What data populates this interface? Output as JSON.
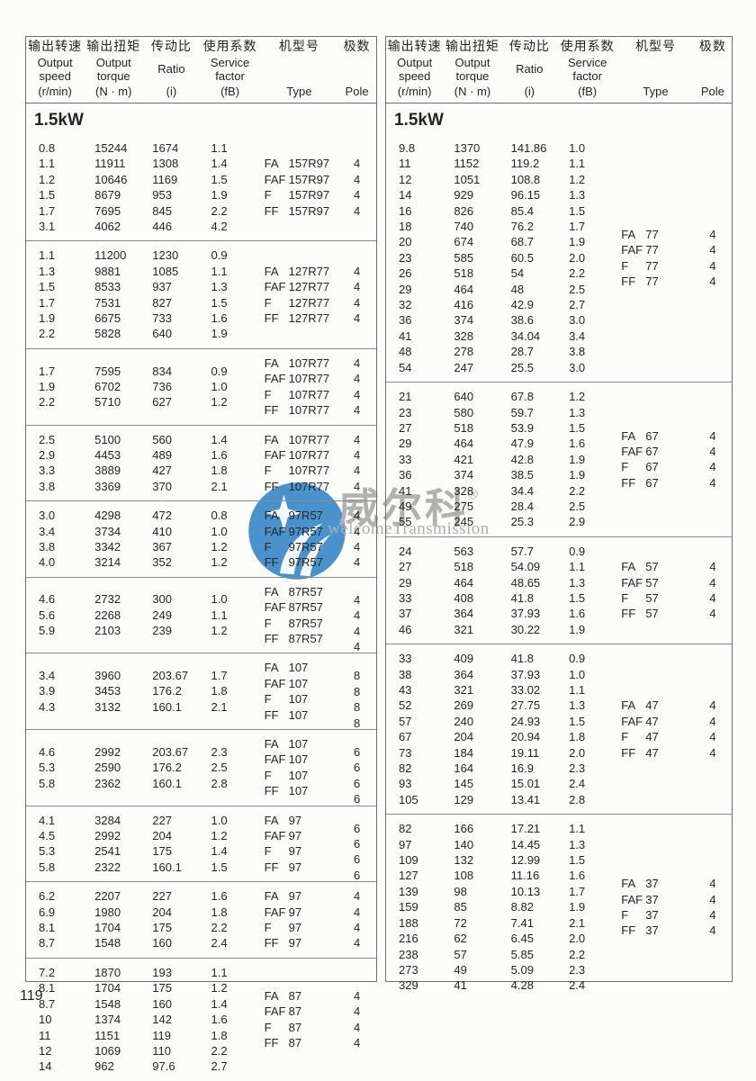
{
  "page": {
    "number": "119"
  },
  "header": {
    "columns": [
      {
        "key": "speed",
        "zh": "输出转速",
        "en": "Output speed",
        "unit": "(r/min)"
      },
      {
        "key": "torque",
        "zh": "输出扭矩",
        "en": "Output torque",
        "unit": "(N · m)"
      },
      {
        "key": "ratio",
        "zh": "传动比",
        "en": "Ratio",
        "unit": "(i)"
      },
      {
        "key": "factor",
        "zh": "使用系数",
        "en": "Service factor",
        "unit": "(fB)"
      },
      {
        "key": "type",
        "zh": "机型号",
        "en": "Type",
        "unit": ""
      },
      {
        "key": "pole",
        "zh": "极数",
        "en": "Pole",
        "unit": ""
      }
    ]
  },
  "watermark": {
    "brand_zh": "威尔科",
    "reg_mark": "®",
    "brand_en": "welcomeTransmission",
    "logo_color": "#2b80c4",
    "text_color": "#a4a4a4",
    "logo_name": "wheelco-bird-circle-logo"
  },
  "left_table": {
    "section": "1.5kW",
    "groups": [
      {
        "rows": [
          [
            "0.8",
            "15244",
            "1674",
            "1.1"
          ],
          [
            "1.1",
            "11911",
            "1308",
            "1.4"
          ],
          [
            "1.2",
            "10646",
            "1169",
            "1.5"
          ],
          [
            "1.5",
            "8679",
            "953",
            "1.9"
          ],
          [
            "1.7",
            "7695",
            "845",
            "2.2"
          ],
          [
            "3.1",
            "4062",
            "446",
            "4.2"
          ]
        ],
        "types": [
          {
            "p": "FA",
            "m": "157R97"
          },
          {
            "p": "FAF",
            "m": "157R97"
          },
          {
            "p": "F",
            "m": "157R97"
          },
          {
            "p": "FF",
            "m": "157R97"
          }
        ],
        "poles": [
          "4",
          "4",
          "4",
          "4"
        ],
        "pole_shift": false
      },
      {
        "rows": [
          [
            "1.1",
            "11200",
            "1230",
            "0.9"
          ],
          [
            "1.3",
            "9881",
            "1085",
            "1.1"
          ],
          [
            "1.5",
            "8533",
            "937",
            "1.3"
          ],
          [
            "1.7",
            "7531",
            "827",
            "1.5"
          ],
          [
            "1.9",
            "6675",
            "733",
            "1.6"
          ],
          [
            "2.2",
            "5828",
            "640",
            "1.9"
          ]
        ],
        "types": [
          {
            "p": "FA",
            "m": "127R77"
          },
          {
            "p": "FAF",
            "m": "127R77"
          },
          {
            "p": "F",
            "m": "127R77"
          },
          {
            "p": "FF",
            "m": "127R77"
          }
        ],
        "poles": [
          "4",
          "4",
          "4",
          "4"
        ],
        "pole_shift": false
      },
      {
        "rows": [
          [
            "1.7",
            "7595",
            "834",
            "0.9"
          ],
          [
            "1.9",
            "6702",
            "736",
            "1.0"
          ],
          [
            "2.2",
            "5710",
            "627",
            "1.2"
          ]
        ],
        "types": [
          {
            "p": "FA",
            "m": "107R77"
          },
          {
            "p": "FAF",
            "m": "107R77"
          },
          {
            "p": "F",
            "m": "107R77"
          },
          {
            "p": "FF",
            "m": "107R77"
          }
        ],
        "poles": [
          "4",
          "4",
          "4",
          "4"
        ],
        "pole_shift": false
      },
      {
        "rows": [
          [
            "2.5",
            "5100",
            "560",
            "1.4"
          ],
          [
            "2.9",
            "4453",
            "489",
            "1.6"
          ],
          [
            "3.3",
            "3889",
            "427",
            "1.8"
          ],
          [
            "3.8",
            "3369",
            "370",
            "2.1"
          ]
        ],
        "types": [
          {
            "p": "FA",
            "m": "107R77"
          },
          {
            "p": "FAF",
            "m": "107R77"
          },
          {
            "p": "F",
            "m": "107R77"
          },
          {
            "p": "FF",
            "m": "107R77"
          }
        ],
        "poles": [
          "4",
          "4",
          "4",
          "4"
        ],
        "pole_shift": false
      },
      {
        "rows": [
          [
            "3.0",
            "4298",
            "472",
            "0.8"
          ],
          [
            "3.4",
            "3734",
            "410",
            "1.0"
          ],
          [
            "3.8",
            "3342",
            "367",
            "1.2"
          ],
          [
            "4.0",
            "3214",
            "352",
            "1.2"
          ]
        ],
        "types": [
          {
            "p": "FA",
            "m": "97R57"
          },
          {
            "p": "FAF",
            "m": "97R57"
          },
          {
            "p": "F",
            "m": "97R57"
          },
          {
            "p": "FF",
            "m": "97R57"
          }
        ],
        "poles": [
          "4",
          "4",
          "4",
          "4"
        ],
        "pole_shift": false
      },
      {
        "rows": [
          [
            "4.6",
            "2732",
            "300",
            "1.0"
          ],
          [
            "5.6",
            "2268",
            "249",
            "1.1"
          ],
          [
            "5.9",
            "2103",
            "239",
            "1.2"
          ]
        ],
        "types": [
          {
            "p": "FA",
            "m": "87R57"
          },
          {
            "p": "FAF",
            "m": "87R57"
          },
          {
            "p": "F",
            "m": "87R57"
          },
          {
            "p": "FF",
            "m": "87R57"
          }
        ],
        "poles": [
          "4",
          "4",
          "4",
          "4"
        ],
        "pole_shift": true
      },
      {
        "rows": [
          [
            "3.4",
            "3960",
            "203.67",
            "1.7"
          ],
          [
            "3.9",
            "3453",
            "176.2",
            "1.8"
          ],
          [
            "4.3",
            "3132",
            "160.1",
            "2.1"
          ]
        ],
        "types": [
          {
            "p": "FA",
            "m": "107"
          },
          {
            "p": "FAF",
            "m": "107"
          },
          {
            "p": "F",
            "m": "107"
          },
          {
            "p": "FF",
            "m": "107"
          }
        ],
        "poles": [
          "8",
          "8",
          "8",
          "8"
        ],
        "pole_shift": true
      },
      {
        "rows": [
          [
            "4.6",
            "2992",
            "203.67",
            "2.3"
          ],
          [
            "5.3",
            "2590",
            "176.2",
            "2.5"
          ],
          [
            "5.8",
            "2362",
            "160.1",
            "2.8"
          ]
        ],
        "types": [
          {
            "p": "FA",
            "m": "107"
          },
          {
            "p": "FAF",
            "m": "107"
          },
          {
            "p": "F",
            "m": "107"
          },
          {
            "p": "FF",
            "m": "107"
          }
        ],
        "poles": [
          "6",
          "6",
          "6",
          "6"
        ],
        "pole_shift": true
      },
      {
        "rows": [
          [
            "4.1",
            "3284",
            "227",
            "1.0"
          ],
          [
            "4.5",
            "2992",
            "204",
            "1.2"
          ],
          [
            "5.3",
            "2541",
            "175",
            "1.4"
          ],
          [
            "5.8",
            "2322",
            "160.1",
            "1.5"
          ]
        ],
        "types": [
          {
            "p": "FA",
            "m": "97"
          },
          {
            "p": "FAF",
            "m": "97"
          },
          {
            "p": "F",
            "m": "97"
          },
          {
            "p": "FF",
            "m": "97"
          }
        ],
        "poles": [
          "6",
          "6",
          "6",
          "6"
        ],
        "pole_shift": true
      },
      {
        "rows": [
          [
            "6.2",
            "2207",
            "227",
            "1.6"
          ],
          [
            "6.9",
            "1980",
            "204",
            "1.8"
          ],
          [
            "8.1",
            "1704",
            "175",
            "2.2"
          ],
          [
            "8.7",
            "1548",
            "160",
            "2.4"
          ]
        ],
        "types": [
          {
            "p": "FA",
            "m": "97"
          },
          {
            "p": "FAF",
            "m": "97"
          },
          {
            "p": "F",
            "m": "97"
          },
          {
            "p": "FF",
            "m": "97"
          }
        ],
        "poles": [
          "4",
          "4",
          "4",
          "4"
        ],
        "pole_shift": false
      },
      {
        "rows": [
          [
            "7.2",
            "1870",
            "193",
            "1.1"
          ],
          [
            "8.1",
            "1704",
            "175",
            "1.2"
          ],
          [
            "8.7",
            "1548",
            "160",
            "1.4"
          ],
          [
            "10",
            "1374",
            "142",
            "1.6"
          ],
          [
            "11",
            "1151",
            "119",
            "1.8"
          ],
          [
            "12",
            "1069",
            "110",
            "2.2"
          ],
          [
            "14",
            "962",
            "97.6",
            "2.7"
          ]
        ],
        "types": [
          {
            "p": "FA",
            "m": "87"
          },
          {
            "p": "FAF",
            "m": "87"
          },
          {
            "p": "F",
            "m": "87"
          },
          {
            "p": "FF",
            "m": "87"
          }
        ],
        "poles": [
          "4",
          "4",
          "4",
          "4"
        ],
        "pole_shift": false
      }
    ]
  },
  "right_table": {
    "section": "1.5kW",
    "groups": [
      {
        "rows": [
          [
            "9.8",
            "1370",
            "141.86",
            "1.0"
          ],
          [
            "11",
            "1152",
            "119.2",
            "1.1"
          ],
          [
            "12",
            "1051",
            "108.8",
            "1.2"
          ],
          [
            "14",
            "929",
            "96.15",
            "1.3"
          ],
          [
            "16",
            "826",
            "85.4",
            "1.5"
          ],
          [
            "18",
            "740",
            "76.2",
            "1.7"
          ],
          [
            "20",
            "674",
            "68.7",
            "1.9"
          ],
          [
            "23",
            "585",
            "60.5",
            "2.0"
          ],
          [
            "26",
            "518",
            "54",
            "2.2"
          ],
          [
            "29",
            "464",
            "48",
            "2.5"
          ],
          [
            "32",
            "416",
            "42.9",
            "2.7"
          ],
          [
            "36",
            "374",
            "38.6",
            "3.0"
          ],
          [
            "41",
            "328",
            "34.04",
            "3.4"
          ],
          [
            "48",
            "278",
            "28.7",
            "3.8"
          ],
          [
            "54",
            "247",
            "25.5",
            "3.0"
          ]
        ],
        "types": [
          {
            "p": "FA",
            "m": "77"
          },
          {
            "p": "FAF",
            "m": "77"
          },
          {
            "p": "F",
            "m": "77"
          },
          {
            "p": "FF",
            "m": "77"
          }
        ],
        "poles": [
          "4",
          "4",
          "4",
          "4"
        ],
        "pole_shift": false
      },
      {
        "rows": [
          [
            "21",
            "640",
            "67.8",
            "1.2"
          ],
          [
            "23",
            "580",
            "59.7",
            "1.3"
          ],
          [
            "27",
            "518",
            "53.9",
            "1.5"
          ],
          [
            "29",
            "464",
            "47.9",
            "1.6"
          ],
          [
            "33",
            "421",
            "42.8",
            "1.9"
          ],
          [
            "36",
            "374",
            "38.5",
            "1.9"
          ],
          [
            "41",
            "328",
            "34.4",
            "2.2"
          ],
          [
            "49",
            "275",
            "28.4",
            "2.5"
          ],
          [
            "55",
            "245",
            "25.3",
            "2.9"
          ]
        ],
        "types": [
          {
            "p": "FA",
            "m": "67"
          },
          {
            "p": "FAF",
            "m": "67"
          },
          {
            "p": "F",
            "m": "67"
          },
          {
            "p": "FF",
            "m": "67"
          }
        ],
        "poles": [
          "4",
          "4",
          "4",
          "4"
        ],
        "pole_shift": false
      },
      {
        "rows": [
          [
            "24",
            "563",
            "57.7",
            "0.9"
          ],
          [
            "27",
            "518",
            "54.09",
            "1.1"
          ],
          [
            "29",
            "464",
            "48.65",
            "1.3"
          ],
          [
            "33",
            "408",
            "41.8",
            "1.5"
          ],
          [
            "37",
            "364",
            "37.93",
            "1.6"
          ],
          [
            "46",
            "321",
            "30.22",
            "1.9"
          ]
        ],
        "types": [
          {
            "p": "FA",
            "m": "57"
          },
          {
            "p": "FAF",
            "m": "57"
          },
          {
            "p": "F",
            "m": "57"
          },
          {
            "p": "FF",
            "m": "57"
          }
        ],
        "poles": [
          "4",
          "4",
          "4",
          "4"
        ],
        "pole_shift": false
      },
      {
        "rows": [
          [
            "33",
            "409",
            "41.8",
            "0.9"
          ],
          [
            "38",
            "364",
            "37.93",
            "1.0"
          ],
          [
            "43",
            "321",
            "33.02",
            "1.1"
          ],
          [
            "52",
            "269",
            "27.75",
            "1.3"
          ],
          [
            "57",
            "240",
            "24.93",
            "1.5"
          ],
          [
            "67",
            "204",
            "20.94",
            "1.8"
          ],
          [
            "73",
            "184",
            "19.11",
            "2.0"
          ],
          [
            "82",
            "164",
            "16.9",
            "2.3"
          ],
          [
            "93",
            "145",
            "15.01",
            "2.4"
          ],
          [
            "105",
            "129",
            "13.41",
            "2.8"
          ]
        ],
        "types": [
          {
            "p": "FA",
            "m": "47"
          },
          {
            "p": "FAF",
            "m": "47"
          },
          {
            "p": "F",
            "m": "47"
          },
          {
            "p": "FF",
            "m": "47"
          }
        ],
        "poles": [
          "4",
          "4",
          "4",
          "4"
        ],
        "pole_shift": false
      },
      {
        "rows": [
          [
            "82",
            "166",
            "17.21",
            "1.1"
          ],
          [
            "97",
            "140",
            "14.45",
            "1.3"
          ],
          [
            "109",
            "132",
            "12.99",
            "1.5"
          ],
          [
            "127",
            "108",
            "11.16",
            "1.6"
          ],
          [
            "139",
            "98",
            "10.13",
            "1.7"
          ],
          [
            "159",
            "85",
            "8.82",
            "1.9"
          ],
          [
            "188",
            "72",
            "7.41",
            "2.1"
          ],
          [
            "216",
            "62",
            "6.45",
            "2.0"
          ],
          [
            "238",
            "57",
            "5.85",
            "2.2"
          ],
          [
            "273",
            "49",
            "5.09",
            "2.3"
          ],
          [
            "329",
            "41",
            "4.28",
            "2.4"
          ]
        ],
        "types": [
          {
            "p": "FA",
            "m": "37"
          },
          {
            "p": "FAF",
            "m": "37"
          },
          {
            "p": "F",
            "m": "37"
          },
          {
            "p": "FF",
            "m": "37"
          }
        ],
        "poles": [
          "4",
          "4",
          "4",
          "4"
        ],
        "pole_shift": false
      }
    ]
  }
}
